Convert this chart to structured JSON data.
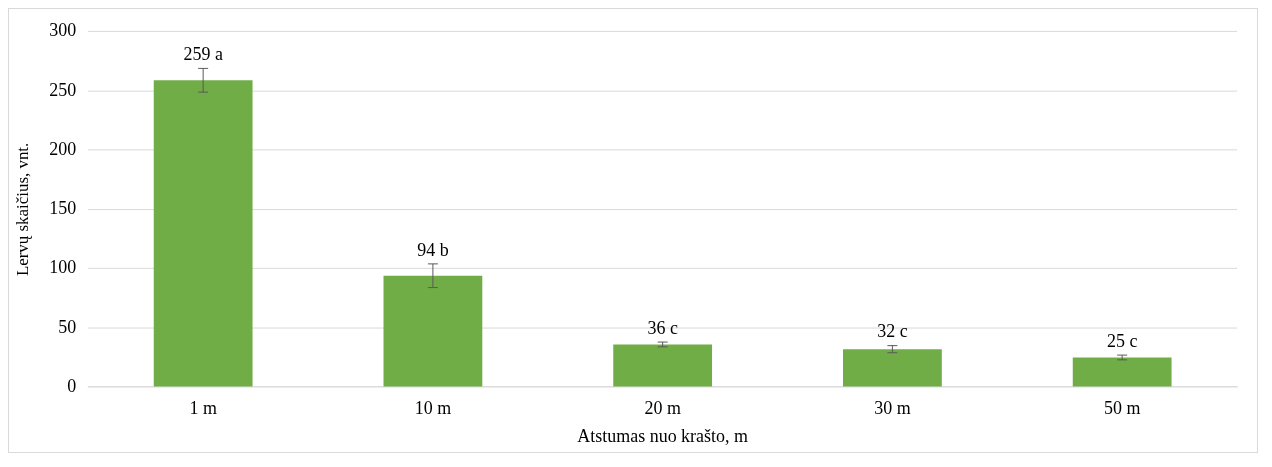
{
  "chart_data": {
    "type": "bar",
    "xlabel": "Atstumas nuo krašto, m",
    "ylabel": "Lervų skaičius, vnt.",
    "categories": [
      "1 m",
      "10 m",
      "20 m",
      "30 m",
      "50 m"
    ],
    "values": [
      259,
      94,
      36,
      32,
      25
    ],
    "errors": [
      10,
      10,
      2,
      3,
      2
    ],
    "value_labels": [
      "259 a",
      "94 b",
      "36 c",
      "32 c",
      "25 c"
    ],
    "color": "#70ad47",
    "ylim": [
      0,
      300
    ],
    "yticks": [
      0,
      50,
      100,
      150,
      200,
      250,
      300
    ],
    "grid": "y",
    "legend": false
  }
}
